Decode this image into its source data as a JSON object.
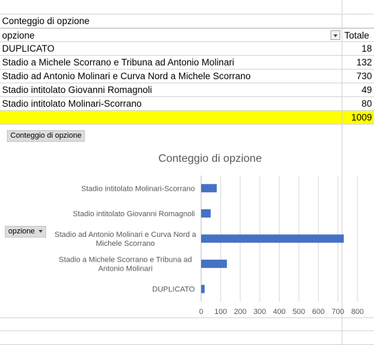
{
  "table": {
    "title": "Conteggio di opzione",
    "header_label": "opzione",
    "header_total": "Totale",
    "rows": [
      {
        "label": "DUPLICATO",
        "value": "18"
      },
      {
        "label": "Stadio a Michele Scorrano e Tribuna ad Antonio Molinari",
        "value": "132"
      },
      {
        "label": "Stadio ad Antonio Molinari e Curva Nord a Michele Scorrano",
        "value": "730"
      },
      {
        "label": "Stadio intitolato Giovanni Romagnoli",
        "value": "49"
      },
      {
        "label": "Stadio intitolato Molinari-Scorrano",
        "value": "80"
      }
    ],
    "grand_total": "1009",
    "highlight_color": "#ffff00"
  },
  "chart": {
    "value_field_button": "Conteggio di opzione",
    "axis_field_button": "opzione",
    "filter_icon": "chevron-down-icon"
  },
  "chart_data": {
    "type": "bar",
    "orientation": "horizontal",
    "title": "Conteggio di opzione",
    "categories_display": [
      [
        "Stadio intitolato Molinari-Scorrano"
      ],
      [
        "Stadio intitolato Giovanni Romagnoli"
      ],
      [
        "Stadio ad Antonio Molinari e Curva Nord a",
        "Michele Scorrano"
      ],
      [
        "Stadio a Michele Scorrano e Tribuna ad",
        "Antonio Molinari"
      ],
      [
        "DUPLICATO"
      ]
    ],
    "values": [
      80,
      49,
      730,
      132,
      18
    ],
    "xlim": [
      0,
      800
    ],
    "ticks": [
      0,
      100,
      200,
      300,
      400,
      500,
      600,
      700,
      800
    ],
    "bar_color": "#4472c4",
    "grid": true,
    "legend": "none"
  }
}
